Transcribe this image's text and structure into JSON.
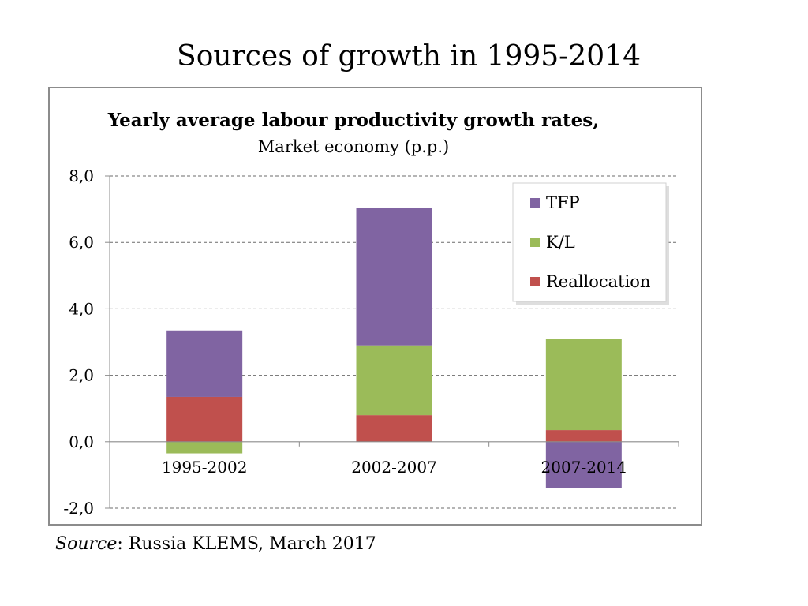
{
  "slide": {
    "title": "Sources of growth in 1995-2014"
  },
  "source": {
    "label": "Source",
    "text": ": Russia KLEMS, March 2017"
  },
  "colors": {
    "tfp": "#8064a2",
    "kl": "#9bbb59",
    "reallocation": "#c0504d"
  },
  "chart_data": {
    "type": "bar",
    "stacked": true,
    "title": "Yearly average labour productivity growth rates,",
    "subtitle": "Market economy (p.p.)",
    "categories": [
      "1995-2002",
      "2002-2007",
      "2007-2014"
    ],
    "series": [
      {
        "name": "Reallocation",
        "values": [
          1.35,
          0.8,
          0.35
        ]
      },
      {
        "name": "K/L",
        "values": [
          -0.35,
          2.1,
          2.75
        ]
      },
      {
        "name": "TFP",
        "values": [
          2.0,
          4.15,
          -1.4
        ]
      }
    ],
    "ylim": [
      -2.0,
      8.0
    ],
    "yticks": [
      "8,0",
      "6,0",
      "4,0",
      "2,0",
      "0,0",
      "-2,0"
    ],
    "ytick_values": [
      8,
      6,
      4,
      2,
      0,
      -2
    ],
    "grid": true,
    "legend": {
      "placement": "top-right",
      "order": [
        "TFP",
        "K/L",
        "Reallocation"
      ]
    }
  }
}
